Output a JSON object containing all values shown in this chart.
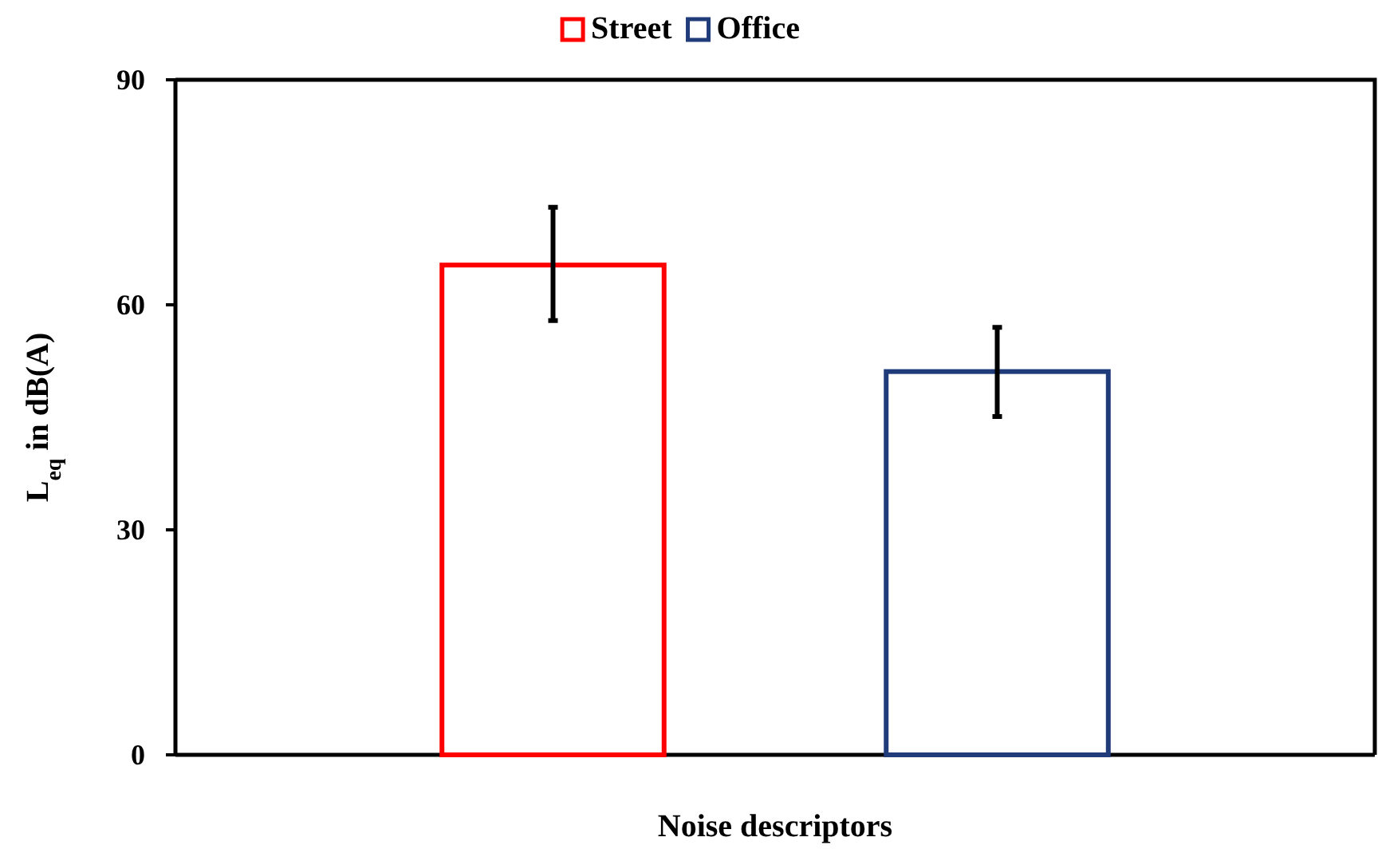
{
  "chart_data": {
    "type": "bar",
    "categories": [
      null
    ],
    "series": [
      {
        "name": "Street",
        "color": "#ff0000",
        "values": [
          65.3
        ],
        "errors": [
          [
            57.9,
            73.0
          ]
        ]
      },
      {
        "name": "Office",
        "color": "#1f3b7a",
        "values": [
          51.1
        ],
        "errors": [
          [
            45.1,
            57.0
          ]
        ]
      }
    ],
    "xlabel": "Noise descriptors",
    "ylabel": "L$_{eq}$ in dB(A)",
    "ylim": [
      0,
      90
    ],
    "yticks": [
      0,
      30,
      60,
      90
    ],
    "grid": false,
    "legend": "top"
  }
}
